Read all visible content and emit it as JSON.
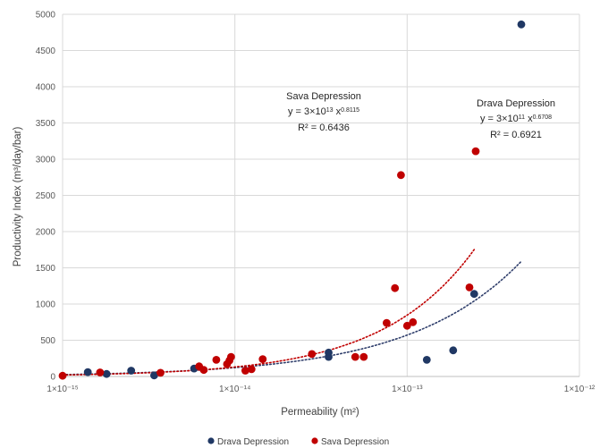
{
  "chart_data": {
    "type": "scatter",
    "title": "",
    "xlabel": "Permeability (m²)",
    "ylabel": "Productivity Index (m³/day/bar)",
    "xscale": "log",
    "xlim": [
      1e-15,
      1e-12
    ],
    "ylim": [
      0,
      5000
    ],
    "x_ticks": [
      {
        "value": 1e-15,
        "label": "1×10⁻¹⁵"
      },
      {
        "value": 1e-14,
        "label": "1×10⁻¹⁴"
      },
      {
        "value": 1e-13,
        "label": "1×10⁻¹³"
      },
      {
        "value": 1e-12,
        "label": "1×10⁻¹²"
      }
    ],
    "y_ticks": [
      0,
      500,
      1000,
      1500,
      2000,
      2500,
      3000,
      3500,
      4000,
      4500,
      5000
    ],
    "grid": true,
    "legend_position": "bottom",
    "series": [
      {
        "name": "Drava Depression",
        "color": "#203864",
        "points": [
          [
            1.4e-15,
            60
          ],
          [
            1.8e-15,
            35
          ],
          [
            2.5e-15,
            80
          ],
          [
            3.4e-15,
            15
          ],
          [
            5.8e-15,
            110
          ],
          [
            3.5e-14,
            270
          ],
          [
            3.5e-14,
            330
          ],
          [
            1.3e-13,
            230
          ],
          [
            1.85e-13,
            360
          ],
          [
            2.45e-13,
            1140
          ],
          [
            4.6e-13,
            4860
          ]
        ],
        "trendline": {
          "a": 300000000000.0,
          "b": 0.6708,
          "x_range": [
            1e-15,
            4.6e-13
          ],
          "color": "#2f3e6b"
        }
      },
      {
        "name": "Sava Depression",
        "color": "#c00000",
        "points": [
          [
            1e-15,
            10
          ],
          [
            1.65e-15,
            55
          ],
          [
            3.7e-15,
            50
          ],
          [
            6.2e-15,
            140
          ],
          [
            6.6e-15,
            90
          ],
          [
            7.8e-15,
            230
          ],
          [
            9e-15,
            170
          ],
          [
            9.3e-15,
            220
          ],
          [
            9.5e-15,
            270
          ],
          [
            1.15e-14,
            80
          ],
          [
            1.25e-14,
            100
          ],
          [
            1.45e-14,
            240
          ],
          [
            2.8e-14,
            310
          ],
          [
            5e-14,
            270
          ],
          [
            5.6e-14,
            270
          ],
          [
            7.6e-14,
            740
          ],
          [
            8.5e-14,
            1220
          ],
          [
            9.2e-14,
            2780
          ],
          [
            1e-13,
            700
          ],
          [
            1.08e-13,
            750
          ],
          [
            2.3e-13,
            1230
          ],
          [
            2.5e-13,
            3110
          ]
        ],
        "trendline": {
          "a": 30000000000000.0,
          "b": 0.8115,
          "x_range": [
            1e-15,
            2.45e-13
          ],
          "color": "#c00000"
        }
      }
    ],
    "annotations": [
      {
        "series": "Sava Depression",
        "lines": [
          "Sava Depression",
          "y = 3×10",
          "13",
          " x",
          "0.8115",
          "R² = 0.6436"
        ]
      },
      {
        "series": "Drava Depression",
        "lines": [
          "Drava Depression",
          "y = 3×10",
          "11",
          " x",
          "0.6708",
          "R² = 0.6921"
        ]
      }
    ]
  }
}
